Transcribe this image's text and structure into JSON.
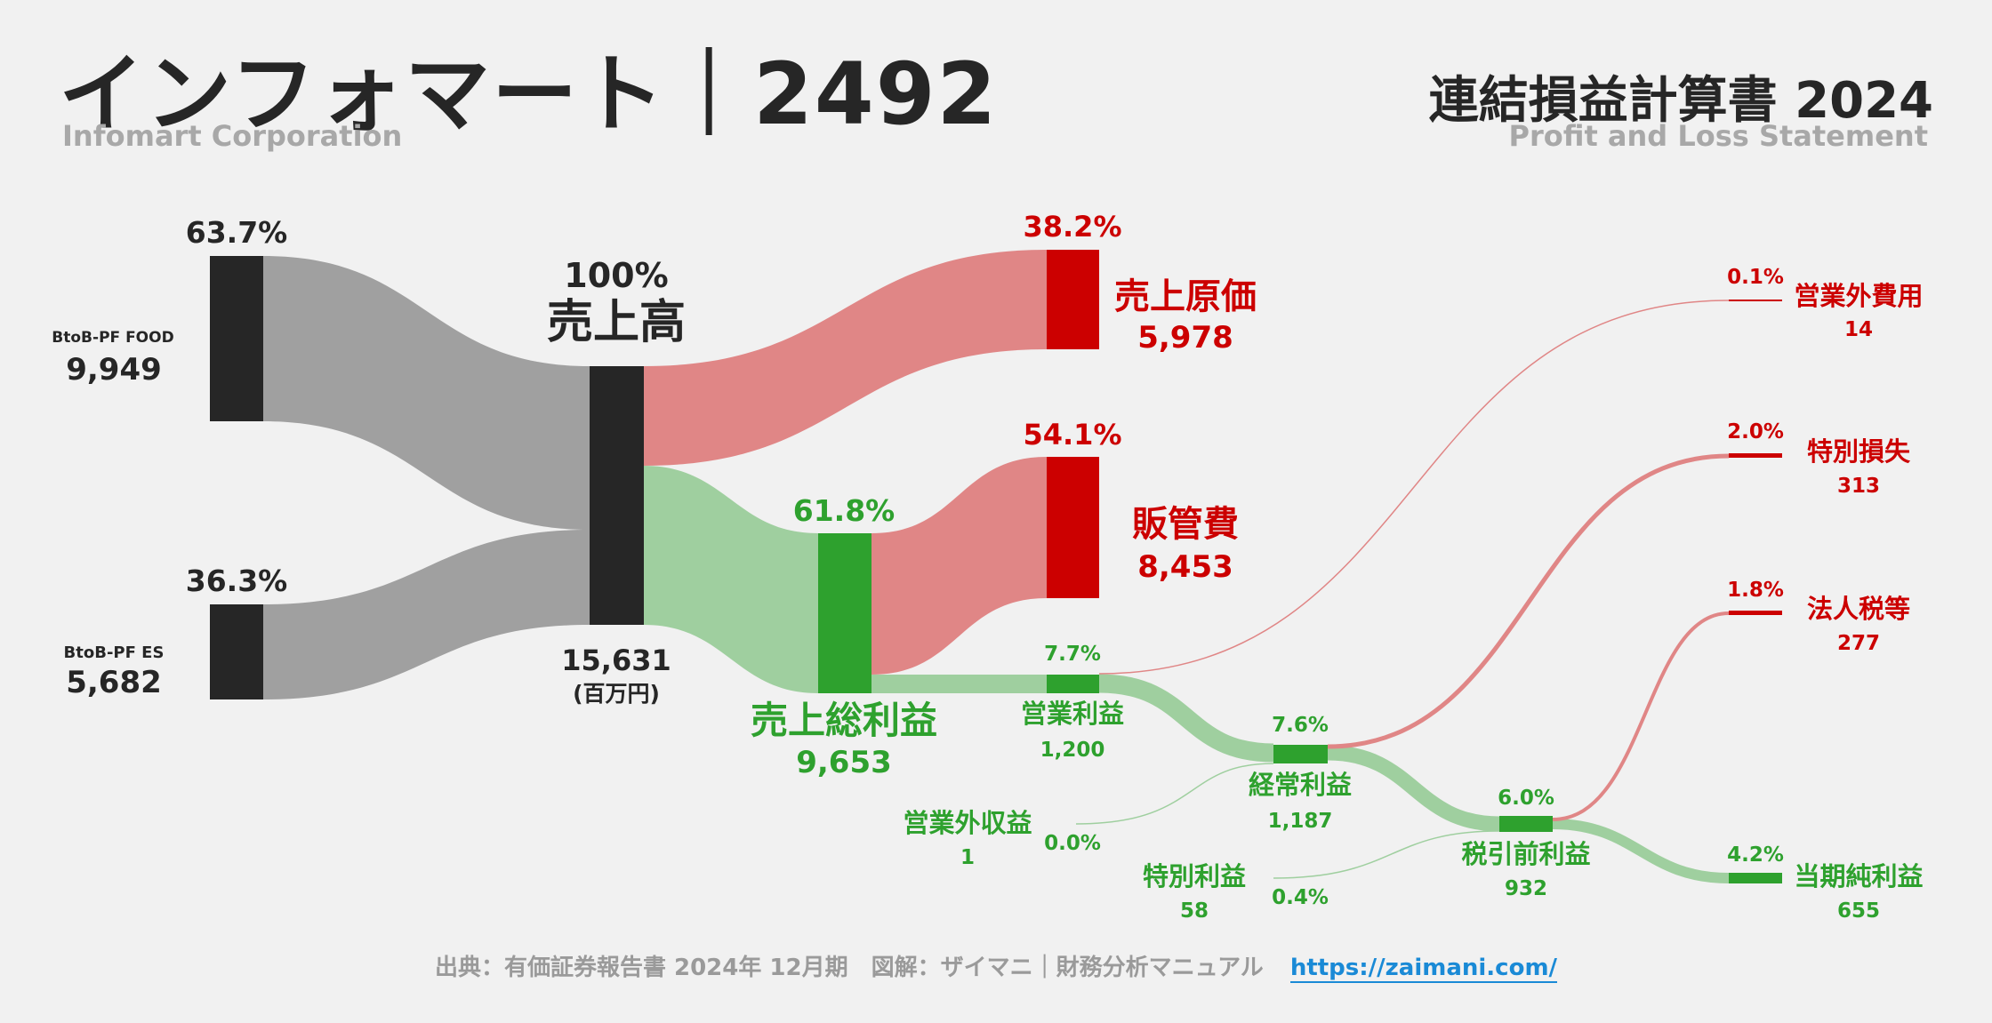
{
  "header": {
    "title": "インフォマート｜2492",
    "subtitle": "Infomart Corporation",
    "right_title": "連結損益計算書 2024",
    "right_subtitle": "Profit and Loss Statement"
  },
  "colors": {
    "dark": "#262626",
    "gray_flow": "#a0a0a0",
    "red": "#cc0000",
    "red_flow": "#e08686",
    "green": "#2ea12e",
    "green_flow": "#9fcf9f"
  },
  "nodes": {
    "food": {
      "name": "BtoB-PF FOOD",
      "value": "9,949",
      "pct": "63.7%"
    },
    "es": {
      "name": "BtoB-PF ES",
      "value": "5,682",
      "pct": "36.3%"
    },
    "revenue": {
      "name": "売上高",
      "value": "15,631",
      "unit": "(百万円)",
      "pct": "100%"
    },
    "cogs": {
      "name": "売上原価",
      "value": "5,978",
      "pct": "38.2%"
    },
    "gross": {
      "name": "売上総利益",
      "value": "9,653",
      "pct": "61.8%"
    },
    "sga": {
      "name": "販管費",
      "value": "8,453",
      "pct": "54.1%"
    },
    "operating": {
      "name": "営業利益",
      "value": "1,200",
      "pct": "7.7%"
    },
    "nonop_income": {
      "name": "営業外収益",
      "value": "1",
      "pct": "0.0%"
    },
    "nonop_expense": {
      "name": "営業外費用",
      "value": "14",
      "pct": "0.1%"
    },
    "ordinary": {
      "name": "経常利益",
      "value": "1,187",
      "pct": "7.6%"
    },
    "special_gain": {
      "name": "特別利益",
      "value": "58",
      "pct": "0.4%"
    },
    "special_loss": {
      "name": "特別損失",
      "value": "313",
      "pct": "2.0%"
    },
    "pretax": {
      "name": "税引前利益",
      "value": "932",
      "pct": "6.0%"
    },
    "tax": {
      "name": "法人税等",
      "value": "277",
      "pct": "1.8%"
    },
    "net": {
      "name": "当期純利益",
      "value": "655",
      "pct": "4.2%"
    }
  },
  "footer": {
    "source": "出典：有価証券報告書 2024年 12月期　図解：ザイマニ｜財務分析マニュアル",
    "link": "https://zaimani.com/"
  }
}
